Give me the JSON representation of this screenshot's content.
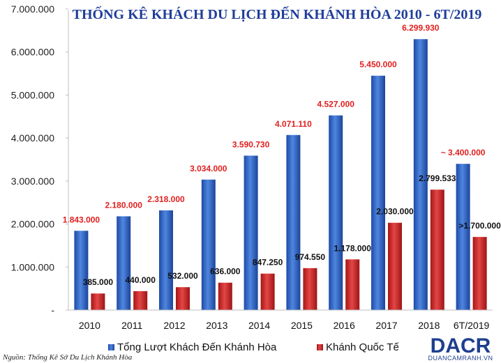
{
  "chart_data": {
    "type": "bar",
    "title": "THỐNG KÊ KHÁCH DU LỊCH ĐẾN KHÁNH HÒA 2010 - 6T/2019",
    "categories": [
      "2010",
      "2011",
      "2012",
      "2013",
      "2014",
      "2015",
      "2016",
      "2017",
      "2018",
      "6T/2019"
    ],
    "ylim": [
      0,
      7000000
    ],
    "yticks": [
      {
        "value": 0,
        "label": "-"
      },
      {
        "value": 1000000,
        "label": "1.000.000"
      },
      {
        "value": 2000000,
        "label": "2.000.000"
      },
      {
        "value": 3000000,
        "label": "3.000.000"
      },
      {
        "value": 4000000,
        "label": "4.000.000"
      },
      {
        "value": 5000000,
        "label": "5.000.000"
      },
      {
        "value": 6000000,
        "label": "6.000.000"
      },
      {
        "value": 7000000,
        "label": "7.000.000"
      }
    ],
    "series": [
      {
        "name": "Tổng Lượt Khách Đến Khánh Hòa",
        "color": "#2e64c8",
        "values": [
          1843000,
          2180000,
          2318000,
          3034000,
          3590730,
          4071110,
          4527000,
          5450000,
          6299930,
          3400000
        ],
        "labels": [
          "1.843.000",
          "2.180.000",
          "2.318.000",
          "3.034.000",
          "3.590.730",
          "4.071.110",
          "4.527.000",
          "5.450.000",
          "6.299.930",
          "~ 3.400.000"
        ]
      },
      {
        "name": "Khánh Quốc Tế",
        "color": "#cf1f1f",
        "values": [
          385000,
          440000,
          532000,
          636000,
          847250,
          974550,
          1178000,
          2030000,
          2799533,
          1700000
        ],
        "labels": [
          "385.000",
          "440.000",
          "532.000",
          "636.000",
          "847.250",
          "974.550",
          "1.178.000",
          "2.030.000",
          "2.799.533",
          ">1.700.000"
        ]
      }
    ],
    "xlabel": "",
    "ylabel": "",
    "grid": false,
    "legend": "bottom-center"
  },
  "source": "Nguồn: Thống Kê Sở Du Lịch Khánh Hòa",
  "logo": {
    "main": "DACR",
    "sub": "DUANCAMRANH.VN"
  }
}
